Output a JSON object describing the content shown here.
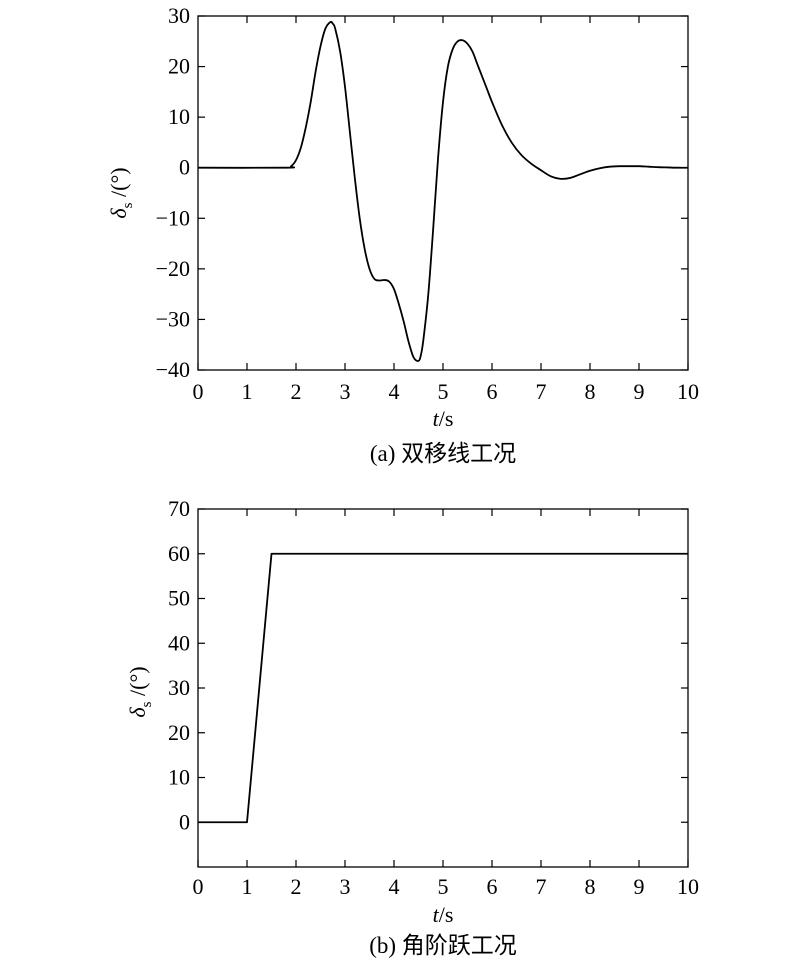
{
  "chart_data": [
    {
      "type": "line",
      "caption": "(a) 双移线工况",
      "xlabel": {
        "var": "t",
        "unit": "/s"
      },
      "ylabel": {
        "var": "δ",
        "sub": "s",
        "unit": " /(°)"
      },
      "xlim": [
        0,
        10
      ],
      "ylim": [
        -40,
        30
      ],
      "xticks": [
        "0",
        "1",
        "2",
        "3",
        "4",
        "5",
        "6",
        "7",
        "8",
        "9",
        "10"
      ],
      "yticks": [
        "30",
        "20",
        "10",
        "0",
        "−10",
        "−20",
        "−30",
        "−40"
      ],
      "ytick_values": [
        30,
        20,
        10,
        0,
        -10,
        -20,
        -30,
        -40
      ],
      "grid": false,
      "series": [
        {
          "x": [
            0,
            1.8,
            1.9,
            2.0,
            2.1,
            2.2,
            2.3,
            2.4,
            2.5,
            2.6,
            2.7,
            2.75,
            2.8,
            2.9,
            3.0,
            3.1,
            3.2,
            3.3,
            3.4,
            3.5,
            3.6,
            3.7,
            3.8,
            3.9,
            4.0,
            4.1,
            4.2,
            4.3,
            4.4,
            4.5,
            4.55,
            4.6,
            4.7,
            4.8,
            4.9,
            5.0,
            5.1,
            5.2,
            5.3,
            5.4,
            5.5,
            5.6,
            5.7,
            5.8,
            5.9,
            6.0,
            6.2,
            6.4,
            6.6,
            6.8,
            7.0,
            7.2,
            7.4,
            7.6,
            7.8,
            8.0,
            8.2,
            8.4,
            8.6,
            8.8,
            9.0,
            9.2,
            9.4,
            9.6,
            9.8,
            10
          ],
          "y": [
            0,
            0,
            0.3,
            1.5,
            4,
            8,
            13,
            19,
            24,
            27.5,
            28.8,
            28.5,
            27.5,
            23,
            16,
            7,
            -2,
            -10,
            -16,
            -20,
            -22,
            -22.3,
            -22.2,
            -22.5,
            -24,
            -27,
            -30.5,
            -34.5,
            -37.5,
            -38.2,
            -37,
            -34,
            -25,
            -12,
            2,
            13,
            20,
            23.5,
            25,
            25.2,
            24.5,
            23,
            20.5,
            18,
            15.5,
            13,
            8.5,
            5,
            2.5,
            0.8,
            -0.5,
            -1.7,
            -2.2,
            -2,
            -1.3,
            -0.6,
            -0.1,
            0.2,
            0.3,
            0.3,
            0.3,
            0.2,
            0.1,
            0.05,
            0,
            0
          ]
        }
      ]
    },
    {
      "type": "line",
      "caption": "(b) 角阶跃工况",
      "xlabel": {
        "var": "t",
        "unit": "/s"
      },
      "ylabel": {
        "var": "δ",
        "sub": "s",
        "unit": " /(°)"
      },
      "xlim": [
        0,
        10
      ],
      "ylim": [
        -10,
        70
      ],
      "xticks": [
        "0",
        "1",
        "2",
        "3",
        "4",
        "5",
        "6",
        "7",
        "8",
        "9",
        "10"
      ],
      "yticks": [
        "70",
        "60",
        "50",
        "40",
        "30",
        "20",
        "10",
        "0"
      ],
      "ytick_values": [
        70,
        60,
        50,
        40,
        30,
        20,
        10,
        0
      ],
      "grid": false,
      "series": [
        {
          "x": [
            0,
            1.0,
            1.5,
            10
          ],
          "y": [
            0,
            0,
            60,
            60
          ]
        }
      ]
    }
  ]
}
